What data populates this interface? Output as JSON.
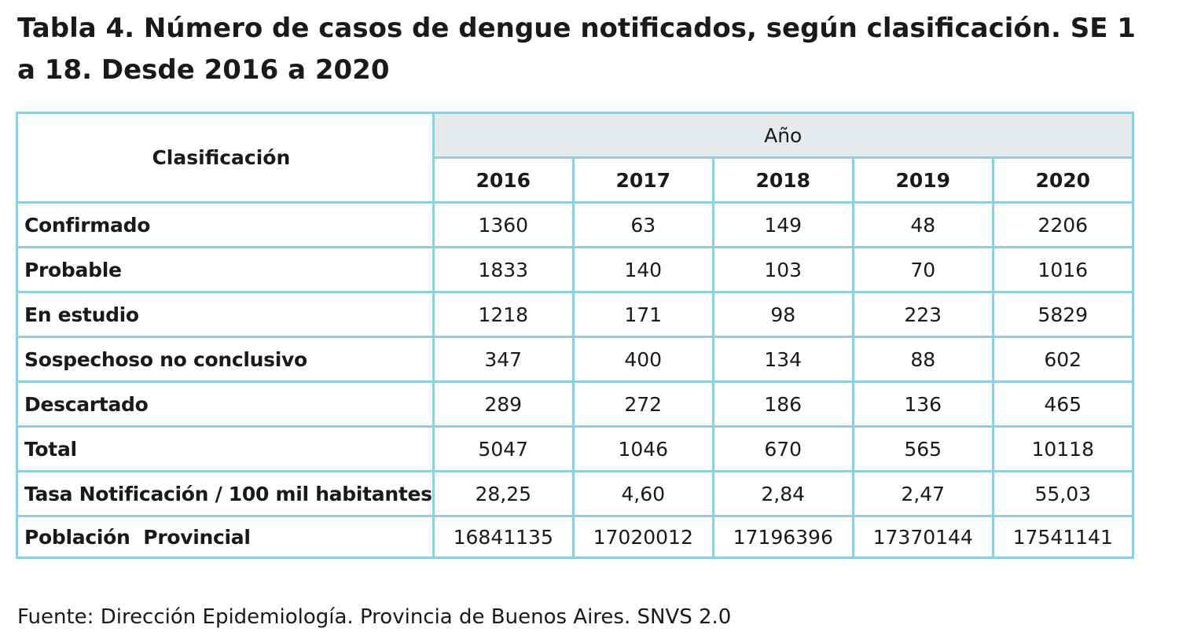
{
  "title": "Tabla 4. Número de casos de dengue notificados, según clasificación. SE 1 a 18. Desde 2016 a 2020",
  "table": {
    "corner_header": "Clasificación",
    "group_header": "Año",
    "years": [
      "2016",
      "2017",
      "2018",
      "2019",
      "2020"
    ],
    "rows": [
      {
        "label": "Confirmado",
        "values": [
          "1360",
          "63",
          "149",
          "48",
          "2206"
        ]
      },
      {
        "label": "Probable",
        "values": [
          "1833",
          "140",
          "103",
          "70",
          "1016"
        ]
      },
      {
        "label": "En estudio",
        "values": [
          "1218",
          "171",
          "98",
          "223",
          "5829"
        ]
      },
      {
        "label": "Sospechoso no conclusivo",
        "values": [
          "347",
          "400",
          "134",
          "88",
          "602"
        ]
      },
      {
        "label": "Descartado",
        "values": [
          "289",
          "272",
          "186",
          "136",
          "465"
        ]
      },
      {
        "label": "Total",
        "values": [
          "5047",
          "1046",
          "670",
          "565",
          "10118"
        ]
      },
      {
        "label": "Tasa Notificación / 100 mil habitantes",
        "values": [
          "28,25",
          "4,60",
          "2,84",
          "2,47",
          "55,03"
        ]
      },
      {
        "label": "Población  Provincial",
        "values": [
          "16841135",
          "17020012",
          "17196396",
          "17370144",
          "17541141"
        ]
      }
    ]
  },
  "source": "Fuente: Dirección Epidemiología. Provincia de Buenos Aires. SNVS 2.0",
  "colors": {
    "border": "#8fd0dc",
    "header_band": "#e6eaec",
    "text": "#1a1a1a"
  }
}
